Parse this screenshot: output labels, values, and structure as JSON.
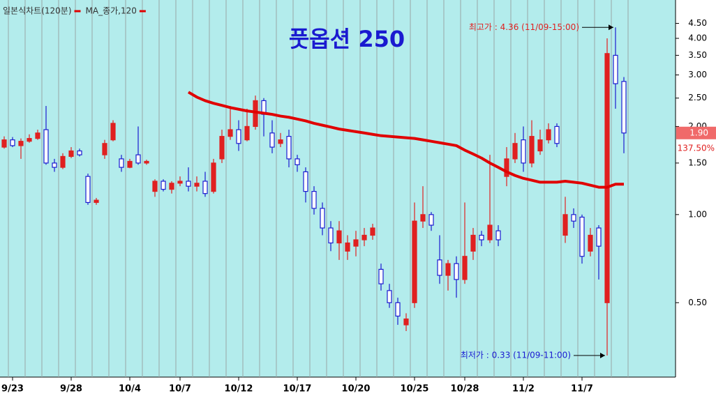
{
  "chart_data": {
    "type": "candlestick",
    "title": "풋옵션 250",
    "log_scale": true,
    "ylim": [
      0.28,
      5.12
    ],
    "yticks": [
      {
        "value": 0.5,
        "label": "0.50"
      },
      {
        "value": 1.0,
        "label": "1.00"
      },
      {
        "value": 1.5,
        "label": "1.50"
      },
      {
        "value": 2.0,
        "label": "2.00"
      },
      {
        "value": 2.5,
        "label": "2.50"
      },
      {
        "value": 3.0,
        "label": "3.00"
      },
      {
        "value": 3.5,
        "label": "3.50"
      },
      {
        "value": 4.0,
        "label": "4.00"
      },
      {
        "value": 4.5,
        "label": "4.50"
      }
    ],
    "categories": [
      null,
      "9/23",
      null,
      null,
      null,
      null,
      null,
      null,
      "9/28",
      null,
      null,
      null,
      null,
      null,
      null,
      "10/4",
      null,
      null,
      null,
      null,
      null,
      "10/7",
      null,
      null,
      null,
      null,
      null,
      null,
      "10/12",
      null,
      null,
      null,
      null,
      null,
      null,
      "10/17",
      null,
      null,
      null,
      null,
      null,
      null,
      "10/20",
      null,
      null,
      null,
      null,
      null,
      null,
      "10/25",
      null,
      null,
      null,
      null,
      null,
      "10/28",
      null,
      null,
      null,
      null,
      null,
      null,
      "11/2",
      null,
      null,
      null,
      null,
      null,
      null,
      "11/7",
      null,
      null,
      null,
      null,
      null
    ],
    "series": [
      {
        "name": "일본식차트(120분)",
        "type": "candlestick",
        "up_color": "#e02020",
        "down_color": "#1a1ad0",
        "open": [
          1.7,
          1.8,
          1.72,
          1.78,
          1.82,
          1.95,
          1.5,
          1.45,
          1.58,
          1.65,
          1.35,
          1.1,
          1.6,
          1.8,
          1.55,
          1.45,
          1.6,
          1.5,
          1.2,
          1.3,
          1.22,
          1.28,
          1.3,
          1.25,
          1.3,
          1.2,
          1.55,
          1.85,
          1.95,
          1.8,
          2.0,
          2.45,
          1.9,
          1.75,
          1.85,
          1.55,
          1.4,
          1.2,
          1.05,
          0.9,
          0.8,
          0.75,
          0.78,
          0.82,
          0.85,
          0.65,
          0.55,
          0.5,
          0.42,
          0.5,
          0.95,
          1.0,
          0.7,
          0.62,
          0.68,
          0.6,
          0.75,
          0.85,
          0.82,
          0.88,
          1.35,
          1.55,
          1.8,
          1.5,
          1.65,
          1.8,
          2.0,
          0.85,
          1.0,
          0.98,
          0.75,
          0.9,
          0.5,
          3.5,
          2.85
        ],
        "high": [
          1.85,
          1.84,
          1.82,
          1.88,
          1.95,
          2.35,
          1.55,
          1.62,
          1.7,
          1.68,
          1.38,
          1.14,
          1.8,
          2.1,
          1.6,
          1.55,
          2.0,
          1.54,
          1.32,
          1.32,
          1.3,
          1.35,
          1.45,
          1.35,
          1.4,
          1.55,
          1.95,
          2.35,
          2.1,
          2.3,
          2.55,
          2.5,
          2.1,
          1.9,
          1.95,
          1.6,
          1.45,
          1.25,
          1.1,
          0.95,
          0.95,
          0.85,
          0.88,
          0.9,
          0.93,
          0.68,
          0.58,
          0.52,
          0.46,
          1.1,
          1.25,
          1.02,
          0.85,
          0.7,
          0.72,
          1.1,
          0.9,
          0.88,
          1.6,
          0.92,
          1.7,
          1.9,
          2.0,
          2.1,
          1.95,
          2.05,
          2.05,
          1.15,
          1.05,
          1.0,
          0.9,
          0.92,
          4.0,
          4.36,
          2.95
        ],
        "low": [
          1.68,
          1.7,
          1.55,
          1.76,
          1.8,
          1.48,
          1.4,
          1.43,
          1.56,
          1.58,
          1.08,
          1.08,
          1.55,
          1.78,
          1.4,
          1.44,
          1.48,
          1.48,
          1.15,
          1.2,
          1.18,
          1.25,
          1.2,
          1.2,
          1.15,
          1.18,
          1.5,
          1.8,
          1.65,
          1.78,
          1.95,
          1.85,
          1.62,
          1.7,
          1.45,
          1.4,
          1.1,
          1.0,
          0.85,
          0.75,
          0.7,
          0.7,
          0.72,
          0.78,
          0.82,
          0.55,
          0.48,
          0.42,
          0.4,
          0.48,
          0.9,
          0.88,
          0.58,
          0.55,
          0.52,
          0.58,
          0.7,
          0.78,
          0.8,
          0.78,
          1.25,
          1.5,
          1.4,
          1.45,
          1.6,
          1.75,
          1.7,
          0.8,
          0.9,
          0.68,
          0.72,
          0.6,
          0.33,
          2.3,
          1.62
        ],
        "close": [
          1.8,
          1.72,
          1.78,
          1.82,
          1.9,
          1.5,
          1.45,
          1.58,
          1.65,
          1.6,
          1.1,
          1.12,
          1.75,
          2.05,
          1.45,
          1.52,
          1.5,
          1.52,
          1.3,
          1.22,
          1.28,
          1.3,
          1.25,
          1.28,
          1.18,
          1.5,
          1.85,
          1.95,
          1.75,
          2.0,
          2.45,
          2.2,
          1.7,
          1.8,
          1.55,
          1.48,
          1.2,
          1.05,
          0.9,
          0.8,
          0.88,
          0.8,
          0.82,
          0.85,
          0.9,
          0.58,
          0.5,
          0.45,
          0.44,
          0.95,
          1.0,
          0.92,
          0.62,
          0.68,
          0.6,
          0.72,
          0.85,
          0.82,
          0.92,
          0.82,
          1.55,
          1.75,
          1.5,
          1.85,
          1.8,
          1.95,
          1.75,
          1.0,
          0.95,
          0.72,
          0.85,
          0.78,
          3.55,
          2.8,
          1.9
        ]
      },
      {
        "name": "MA_종가,120",
        "type": "line",
        "color": "#e00000",
        "values": [
          null,
          null,
          null,
          null,
          null,
          null,
          null,
          null,
          null,
          null,
          null,
          null,
          null,
          null,
          null,
          null,
          null,
          null,
          null,
          null,
          null,
          null,
          2.62,
          2.52,
          2.45,
          2.4,
          2.36,
          2.32,
          2.29,
          2.26,
          2.24,
          2.22,
          2.2,
          2.17,
          2.15,
          2.12,
          2.09,
          2.05,
          2.02,
          1.99,
          1.96,
          1.94,
          1.92,
          1.9,
          1.88,
          1.86,
          1.85,
          1.84,
          1.83,
          1.82,
          1.8,
          1.78,
          1.76,
          1.74,
          1.72,
          1.66,
          1.61,
          1.56,
          1.5,
          1.45,
          1.4,
          1.36,
          1.33,
          1.31,
          1.29,
          1.29,
          1.29,
          1.3,
          1.29,
          1.28,
          1.26,
          1.24,
          1.24,
          1.27,
          1.27
        ]
      }
    ],
    "last_price": {
      "value": 1.9,
      "label": "1.90"
    },
    "change_label": "137.50%",
    "annotations": [
      {
        "text": "최고가 : 4.36 (11/09-15:00)",
        "value": 4.36
      },
      {
        "text": "최저가 : 0.33 (11/09-11:00)",
        "value": 0.33
      }
    ]
  }
}
